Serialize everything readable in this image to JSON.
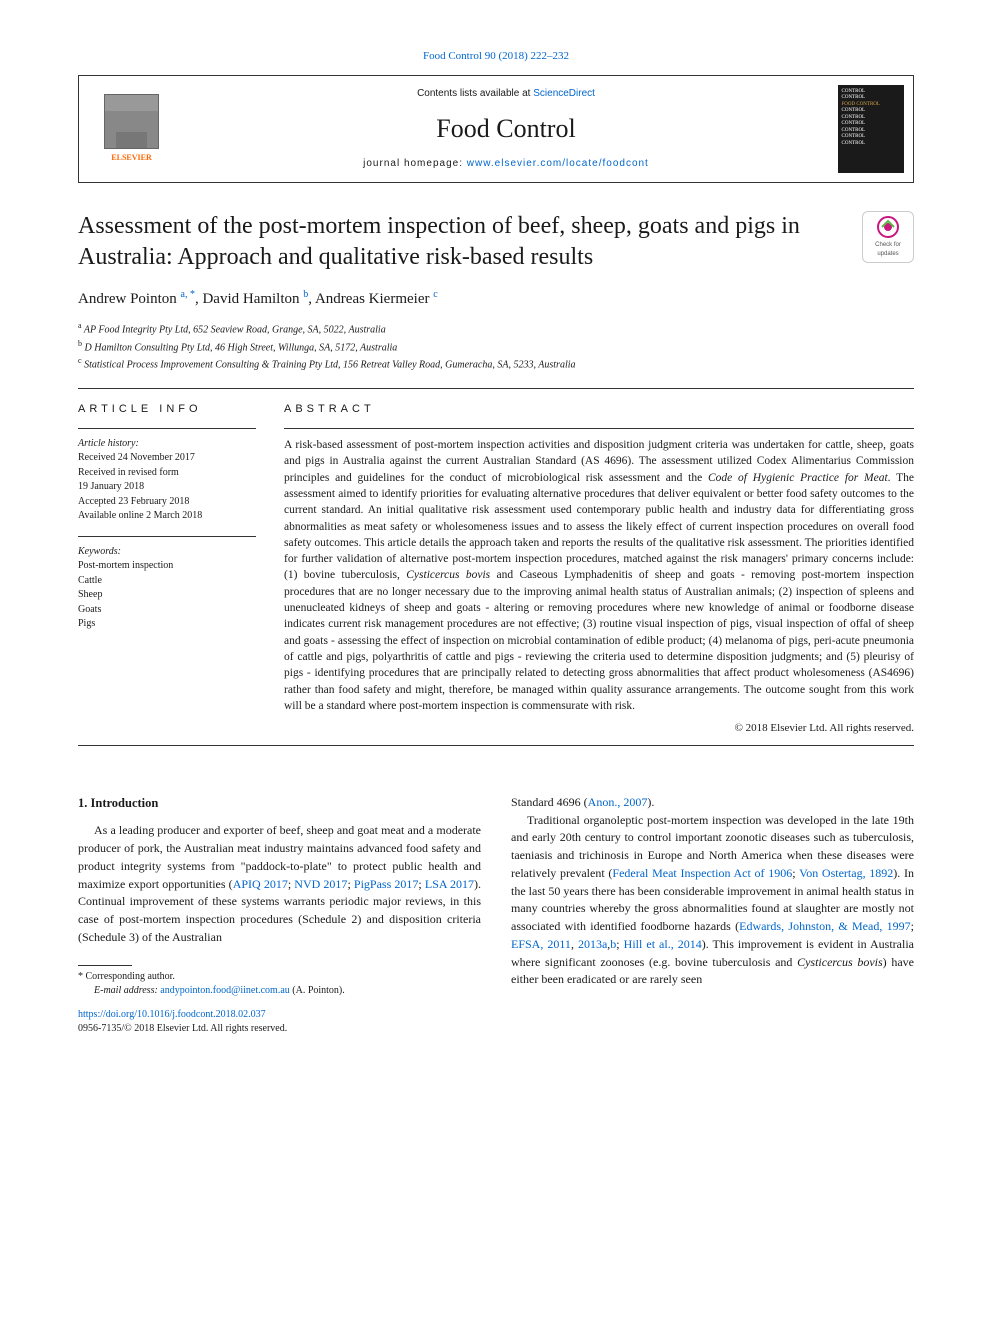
{
  "top_link": {
    "text": "Food Control 90 (2018) 222–232",
    "href": "#"
  },
  "header": {
    "contents_prefix": "Contents lists available at ",
    "contents_link": "ScienceDirect",
    "journal": "Food Control",
    "homepage_prefix": "journal homepage: ",
    "homepage_link": "www.elsevier.com/locate/foodcont",
    "publisher": "ELSEVIER",
    "cover_lines": [
      "CONTROL",
      "CONTROL",
      "FOOD CONTROL",
      "CONTROL",
      "CONTROL",
      "CONTROL",
      "CONTROL",
      "",
      "CONTROL",
      "CONTROL"
    ]
  },
  "check_updates": {
    "line1": "Check for",
    "line2": "updates"
  },
  "title": "Assessment of the post-mortem inspection of beef, sheep, goats and pigs in Australia: Approach and qualitative risk-based results",
  "authors_html": "Andrew Pointon <sup>a, *</sup>, David Hamilton <sup>b</sup>, Andreas Kiermeier <sup>c</sup>",
  "affiliations": [
    {
      "sup": "a",
      "text": "AP Food Integrity Pty Ltd, 652 Seaview Road, Grange, SA, 5022, Australia"
    },
    {
      "sup": "b",
      "text": "D Hamilton Consulting Pty Ltd, 46 High Street, Willunga, SA, 5172, Australia"
    },
    {
      "sup": "c",
      "text": "Statistical Process Improvement Consulting & Training Pty Ltd, 156 Retreat Valley Road, Gumeracha, SA, 5233, Australia"
    }
  ],
  "article_info": {
    "heading": "ARTICLE INFO",
    "history_label": "Article history:",
    "history": [
      "Received 24 November 2017",
      "Received in revised form",
      "19 January 2018",
      "Accepted 23 February 2018",
      "Available online 2 March 2018"
    ],
    "keywords_label": "Keywords:",
    "keywords": [
      "Post-mortem inspection",
      "Cattle",
      "Sheep",
      "Goats",
      "Pigs"
    ]
  },
  "abstract": {
    "heading": "ABSTRACT",
    "text": "A risk-based assessment of post-mortem inspection activities and disposition judgment criteria was undertaken for cattle, sheep, goats and pigs in Australia against the current Australian Standard (AS 4696). The assessment utilized Codex Alimentarius Commission principles and guidelines for the conduct of microbiological risk assessment and the Code of Hygienic Practice for Meat. The assessment aimed to identify priorities for evaluating alternative procedures that deliver equivalent or better food safety outcomes to the current standard. An initial qualitative risk assessment used contemporary public health and industry data for differentiating gross abnormalities as meat safety or wholesomeness issues and to assess the likely effect of current inspection procedures on overall food safety outcomes. This article details the approach taken and reports the results of the qualitative risk assessment. The priorities identified for further validation of alternative post-mortem inspection procedures, matched against the risk managers' primary concerns include: (1) bovine tuberculosis, Cysticercus bovis and Caseous Lymphadenitis of sheep and goats - removing post-mortem inspection procedures that are no longer necessary due to the improving animal health status of Australian animals; (2) inspection of spleens and unenucleated kidneys of sheep and goats - altering or removing procedures where new knowledge of animal or foodborne disease indicates current risk management procedures are not effective; (3) routine visual inspection of pigs, visual inspection of offal of sheep and goats - assessing the effect of inspection on microbial contamination of edible product; (4) melanoma of pigs, peri-acute pneumonia of cattle and pigs, polyarthritis of cattle and pigs - reviewing the criteria used to determine disposition judgments; and (5) pleurisy of pigs - identifying procedures that are principally related to detecting gross abnormalities that affect product wholesomeness (AS4696) rather than food safety and might, therefore, be managed within quality assurance arrangements. The outcome sought from this work will be a standard where post-mortem inspection is commensurate with risk.",
    "copyright": "© 2018 Elsevier Ltd. All rights reserved."
  },
  "intro": {
    "heading": "1.  Introduction",
    "p1_prefix": "As a leading producer and exporter of beef, sheep and goat meat and a moderate producer of pork, the Australian meat industry maintains advanced food safety and product integrity systems from \"paddock-to-plate\" to protect public health and maximize export opportunities (",
    "p1_links": [
      "APIQ 2017",
      "NVD 2017",
      "PigPass 2017",
      "LSA 2017"
    ],
    "p1_suffix": "). Continual improvement of these systems warrants periodic major reviews, in this case of post-mortem inspection procedures (Schedule 2) and disposition criteria (Schedule 3) of the Australian",
    "col2_top_prefix": "Standard 4696 (",
    "col2_top_link": "Anon., 2007",
    "col2_top_suffix": ").",
    "p2_prefix": "Traditional organoleptic post-mortem inspection was developed in the late 19th and early 20th century to control important zoonotic diseases such as tuberculosis, taeniasis and trichinosis in Europe and North America when these diseases were relatively prevalent (",
    "p2_link1": "Federal Meat Inspection Act of 1906",
    "p2_sep1": "; ",
    "p2_link2": "Von Ostertag, 1892",
    "p2_mid": "). In the last 50 years there has been considerable improvement in animal health status in many countries whereby the gross abnormalities found at slaughter are mostly not associated with identified foodborne hazards (",
    "p2_link3": "Edwards, Johnston, & Mead, 1997",
    "p2_sep2": "; ",
    "p2_link4": "EFSA, 2011",
    "p2_sep3": ", ",
    "p2_link5": "2013a",
    "p2_sep4": ",",
    "p2_link6": "b",
    "p2_sep5": "; ",
    "p2_link7": "Hill et al., 2014",
    "p2_suffix": "). This improvement is evident in Australia where significant zoonoses (e.g. bovine tuberculosis and Cysticercus bovis) have either been eradicated or are rarely seen"
  },
  "corresponding": {
    "star": "* Corresponding author.",
    "email_label": "E-mail address: ",
    "email": "andypointon.food@iinet.com.au",
    "email_suffix": " (A. Pointon)."
  },
  "footer": {
    "doi": "https://doi.org/10.1016/j.foodcont.2018.02.037",
    "issn_line": "0956-7135/© 2018 Elsevier Ltd. All rights reserved."
  },
  "colors": {
    "link": "#0066cc",
    "elsevier_orange": "#ff6600",
    "text": "#1a1a1a",
    "border": "#333333"
  }
}
